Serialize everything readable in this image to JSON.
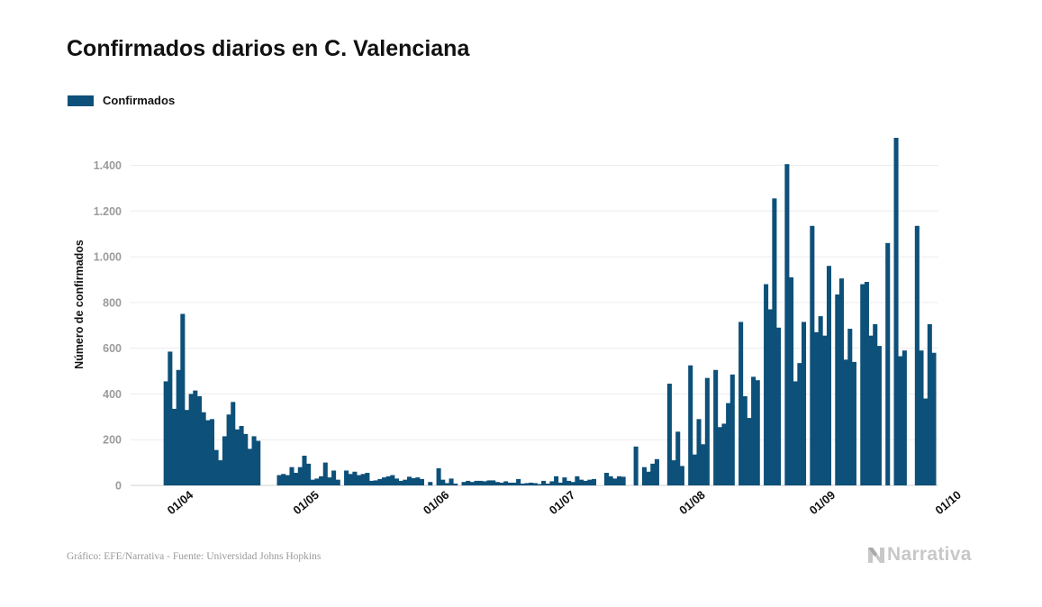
{
  "title": "Confirmados diarios en C. Valenciana",
  "legend": {
    "label": "Confirmados",
    "color": "#0d5079"
  },
  "footer": {
    "source": "Gráfico: EFE/Narrativa - Fuente: Universidad Johns Hopkins",
    "brand": "Narrativa"
  },
  "chart_data": {
    "type": "bar",
    "title": "Confirmados diarios en C. Valenciana",
    "xlabel": "",
    "ylabel": "Número de confirmados",
    "ylim": [
      0,
      1600
    ],
    "yticks": [
      0,
      200,
      400,
      600,
      800,
      1000,
      1200,
      1400
    ],
    "ytick_labels": [
      "0",
      "200",
      "400",
      "600",
      "800",
      "1.000",
      "1.200",
      "1.400"
    ],
    "xticks": [
      {
        "day": 0,
        "label": "01/04"
      },
      {
        "day": 30,
        "label": "01/05"
      },
      {
        "day": 61,
        "label": "01/06"
      },
      {
        "day": 91,
        "label": "01/07"
      },
      {
        "day": 122,
        "label": "01/08"
      },
      {
        "day": 153,
        "label": "01/09"
      },
      {
        "day": 183,
        "label": "01/10"
      }
    ],
    "grid": true,
    "legend_position": "top-left",
    "start_date": "2020-03-27",
    "series": [
      {
        "name": "Confirmados",
        "color": "#0d5079",
        "values": [
          455,
          585,
          335,
          505,
          750,
          330,
          400,
          415,
          390,
          320,
          285,
          290,
          155,
          110,
          215,
          310,
          365,
          245,
          260,
          225,
          160,
          215,
          195,
          null,
          null,
          null,
          null,
          45,
          50,
          45,
          80,
          55,
          80,
          130,
          95,
          25,
          30,
          40,
          100,
          35,
          65,
          25,
          null,
          65,
          50,
          60,
          45,
          50,
          55,
          20,
          22,
          28,
          35,
          40,
          45,
          30,
          20,
          25,
          38,
          32,
          35,
          28,
          null,
          15,
          null,
          75,
          25,
          10,
          30,
          8,
          null,
          15,
          20,
          15,
          20,
          20,
          18,
          22,
          22,
          15,
          12,
          18,
          12,
          12,
          28,
          8,
          10,
          12,
          10,
          6,
          20,
          8,
          18,
          40,
          12,
          35,
          20,
          15,
          40,
          25,
          20,
          25,
          28,
          null,
          null,
          55,
          40,
          30,
          40,
          38,
          null,
          null,
          170,
          null,
          80,
          60,
          95,
          115,
          null,
          null,
          445,
          110,
          235,
          85,
          null,
          525,
          135,
          290,
          180,
          470,
          null,
          505,
          255,
          270,
          360,
          485,
          null,
          715,
          390,
          295,
          475,
          460,
          null,
          880,
          770,
          1255,
          690,
          null,
          1405,
          910,
          455,
          535,
          715,
          null,
          1135,
          670,
          740,
          655,
          960,
          null,
          835,
          905,
          550,
          685,
          540,
          null,
          880,
          890,
          655,
          705,
          610,
          null,
          1060,
          null,
          1520,
          565,
          590,
          null,
          null,
          1135,
          590,
          380,
          705,
          580
        ]
      }
    ]
  }
}
